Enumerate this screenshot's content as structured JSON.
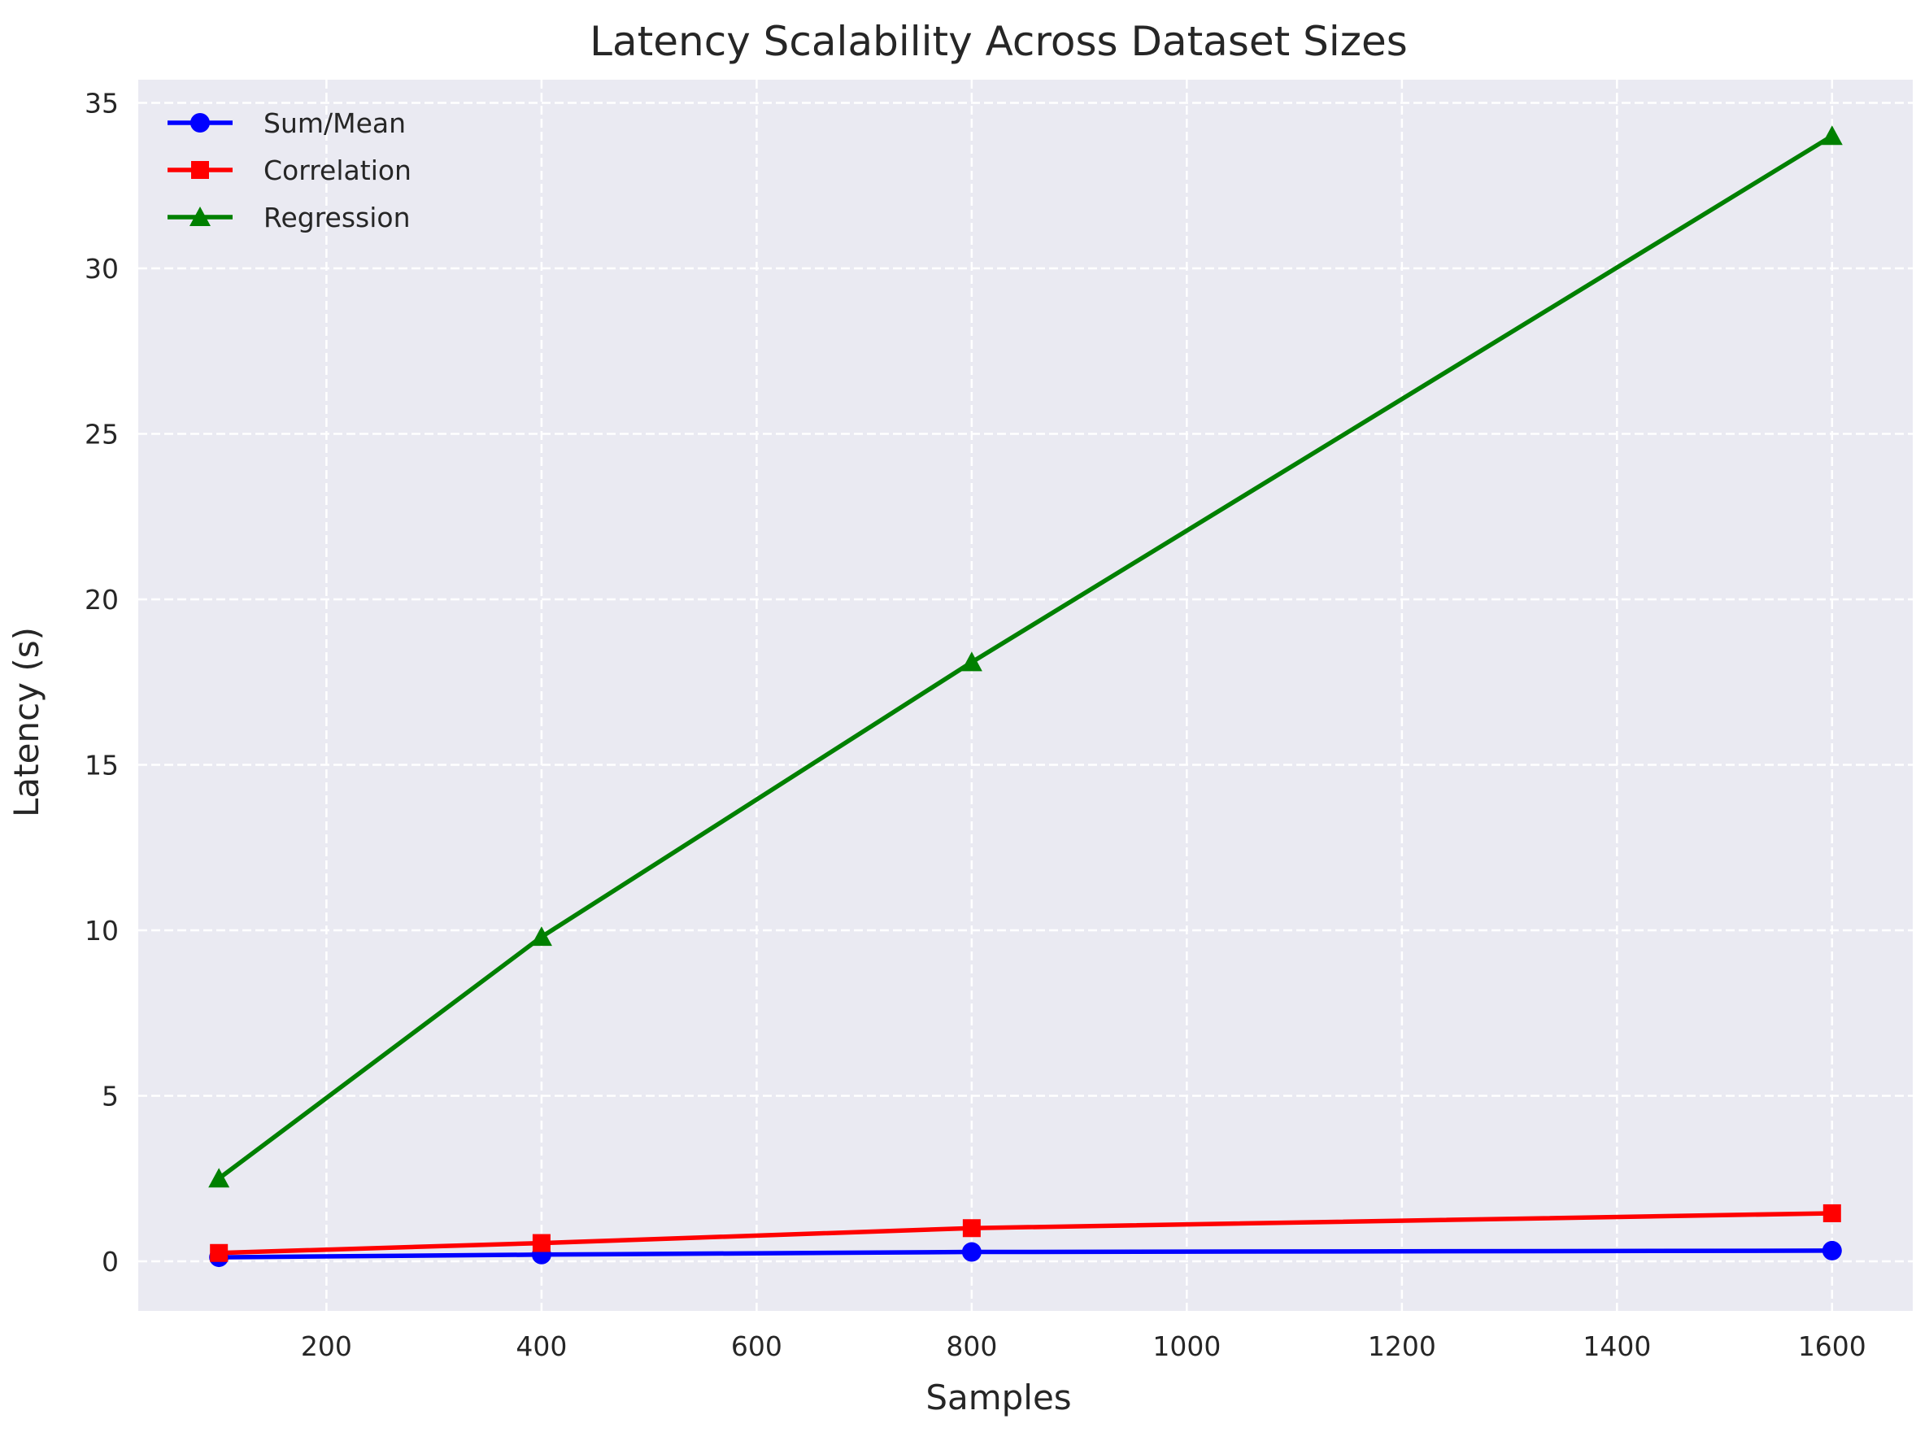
{
  "chart_data": {
    "type": "line",
    "title": "Latency Scalability Across Dataset Sizes",
    "xlabel": "Samples",
    "ylabel": "Latency (s)",
    "x": [
      100,
      400,
      800,
      1600
    ],
    "series": [
      {
        "name": "Sum/Mean",
        "values": [
          0.12,
          0.2,
          0.28,
          0.32
        ],
        "color": "#0000ff",
        "marker": "circle"
      },
      {
        "name": "Correlation",
        "values": [
          0.25,
          0.55,
          1.0,
          1.45
        ],
        "color": "#ff0000",
        "marker": "square"
      },
      {
        "name": "Regression",
        "values": [
          2.5,
          9.8,
          18.1,
          34.0
        ],
        "color": "#008000",
        "marker": "triangle"
      }
    ],
    "xlim": [
      25,
      1675
    ],
    "ylim": [
      -1.5,
      35.7
    ],
    "xticks": [
      200,
      400,
      600,
      800,
      1000,
      1200,
      1400,
      1600
    ],
    "yticks": [
      0,
      5,
      10,
      15,
      20,
      25,
      30,
      35
    ],
    "grid": true,
    "grid_style": "dashed",
    "legend_position": "top-left",
    "background_color": "#eaeaf2",
    "grid_color": "#ffffff"
  }
}
